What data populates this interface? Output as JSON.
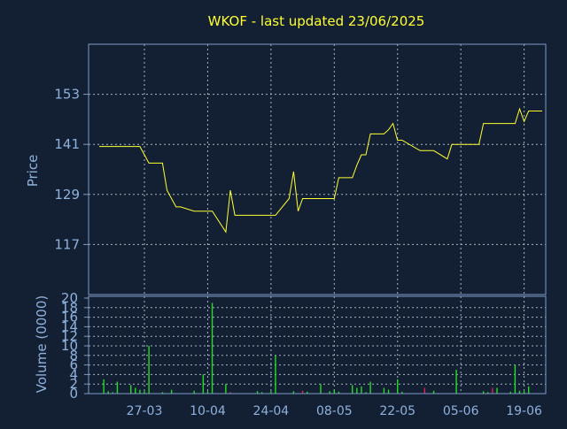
{
  "chart_data": [
    {
      "type": "line",
      "title": "WKOF - last updated 23/06/2025",
      "ylabel": "Price",
      "ylim": [
        105,
        165
      ],
      "yticks": [
        117,
        129,
        141,
        153
      ],
      "xticks": [
        {
          "date": "2025-03-27",
          "label": "27-03"
        },
        {
          "date": "2025-04-10",
          "label": "10-04"
        },
        {
          "date": "2025-04-24",
          "label": "24-04"
        },
        {
          "date": "2025-05-08",
          "label": "08-05"
        },
        {
          "date": "2025-05-22",
          "label": "22-05"
        },
        {
          "date": "2025-06-05",
          "label": "05-06"
        },
        {
          "date": "2025-06-19",
          "label": "19-06"
        }
      ],
      "xlim": [
        "2025-03-17",
        "2025-06-23"
      ],
      "grid": true,
      "line_color": "#ffff33",
      "series": [
        {
          "x": [
            "2025-03-17",
            "2025-03-18",
            "2025-03-19",
            "2025-03-20",
            "2025-03-21",
            "2025-03-24",
            "2025-03-25",
            "2025-03-26",
            "2025-03-27",
            "2025-03-28",
            "2025-03-31",
            "2025-04-01",
            "2025-04-02",
            "2025-04-03",
            "2025-04-04",
            "2025-04-07",
            "2025-04-08",
            "2025-04-09",
            "2025-04-10",
            "2025-04-11",
            "2025-04-14",
            "2025-04-15",
            "2025-04-16",
            "2025-04-17",
            "2025-04-21",
            "2025-04-22",
            "2025-04-23",
            "2025-04-24",
            "2025-04-25",
            "2025-04-28",
            "2025-04-29",
            "2025-04-30",
            "2025-05-01",
            "2025-05-02",
            "2025-05-05",
            "2025-05-06",
            "2025-05-07",
            "2025-05-08",
            "2025-05-09",
            "2025-05-12",
            "2025-05-13",
            "2025-05-14",
            "2025-05-15",
            "2025-05-16",
            "2025-05-19",
            "2025-05-20",
            "2025-05-21",
            "2025-05-22",
            "2025-05-23",
            "2025-05-27",
            "2025-05-28",
            "2025-05-29",
            "2025-05-30",
            "2025-06-02",
            "2025-06-03",
            "2025-06-04",
            "2025-06-05",
            "2025-06-06",
            "2025-06-09",
            "2025-06-10",
            "2025-06-11",
            "2025-06-12",
            "2025-06-13",
            "2025-06-16",
            "2025-06-17",
            "2025-06-18",
            "2025-06-19",
            "2025-06-20",
            "2025-06-23"
          ],
          "y": [
            140.5,
            140.5,
            140.5,
            140.5,
            140.5,
            140.5,
            140.5,
            140.5,
            138.5,
            136.5,
            136.5,
            130,
            128,
            126,
            126,
            125,
            125,
            125,
            125,
            125,
            120,
            130,
            124,
            124,
            124,
            124,
            124,
            124,
            124,
            128,
            134.5,
            125,
            128,
            128,
            128,
            128,
            128,
            128,
            133,
            133,
            136,
            138.5,
            138.5,
            143.5,
            143.5,
            144.5,
            146,
            142,
            142,
            139.5,
            139.5,
            139.5,
            139.5,
            137.5,
            141,
            141,
            141,
            141,
            141,
            146,
            146,
            146,
            146,
            146,
            146,
            149.5,
            146.5,
            149,
            149
          ]
        }
      ]
    },
    {
      "type": "bar",
      "ylabel": "Volume (0000)",
      "ylim": [
        0,
        20
      ],
      "yticks": [
        0,
        2,
        4,
        6,
        8,
        10,
        12,
        14,
        16,
        18,
        20
      ],
      "grid": true,
      "bar_color": "#22dd22",
      "bar_color_down": "#dd2255",
      "series": [
        {
          "x": [
            "2025-03-18",
            "2025-03-19",
            "2025-03-20",
            "2025-03-21",
            "2025-03-24",
            "2025-03-25",
            "2025-03-26",
            "2025-03-27",
            "2025-03-28",
            "2025-03-31",
            "2025-04-02",
            "2025-04-07",
            "2025-04-09",
            "2025-04-10",
            "2025-04-11",
            "2025-04-14",
            "2025-04-15",
            "2025-04-21",
            "2025-04-22",
            "2025-04-24",
            "2025-04-25",
            "2025-04-29",
            "2025-05-01",
            "2025-05-02",
            "2025-05-05",
            "2025-05-07",
            "2025-05-08",
            "2025-05-09",
            "2025-05-12",
            "2025-05-13",
            "2025-05-14",
            "2025-05-15",
            "2025-05-16",
            "2025-05-19",
            "2025-05-20",
            "2025-05-22",
            "2025-05-23",
            "2025-05-28",
            "2025-05-30",
            "2025-06-04",
            "2025-06-10",
            "2025-06-11",
            "2025-06-12",
            "2025-06-13",
            "2025-06-16",
            "2025-06-17",
            "2025-06-18",
            "2025-06-19",
            "2025-06-20"
          ],
          "values": [
            3,
            0.5,
            0.3,
            2.5,
            1.8,
            1.2,
            0.8,
            0.5,
            10,
            0.3,
            0.8,
            0.6,
            4,
            0.5,
            19,
            2,
            0.3,
            0.5,
            0.3,
            0.5,
            8,
            0.5,
            0.6,
            0.4,
            2,
            0.5,
            0.8,
            0.4,
            1.8,
            1.2,
            1.5,
            0.3,
            2.5,
            1.2,
            0.8,
            3,
            0.4,
            1.2,
            0.6,
            5,
            0.5,
            0.3,
            1.2,
            1.2,
            0.4,
            6,
            0.6,
            0.5,
            1.5
          ],
          "down": [
            false,
            false,
            false,
            false,
            false,
            false,
            false,
            false,
            false,
            false,
            false,
            false,
            false,
            false,
            false,
            false,
            true,
            false,
            false,
            false,
            false,
            false,
            true,
            false,
            false,
            false,
            false,
            false,
            false,
            false,
            false,
            false,
            false,
            false,
            false,
            false,
            false,
            true,
            false,
            false,
            false,
            false,
            true,
            false,
            false,
            false,
            false,
            false,
            false
          ]
        }
      ]
    }
  ]
}
